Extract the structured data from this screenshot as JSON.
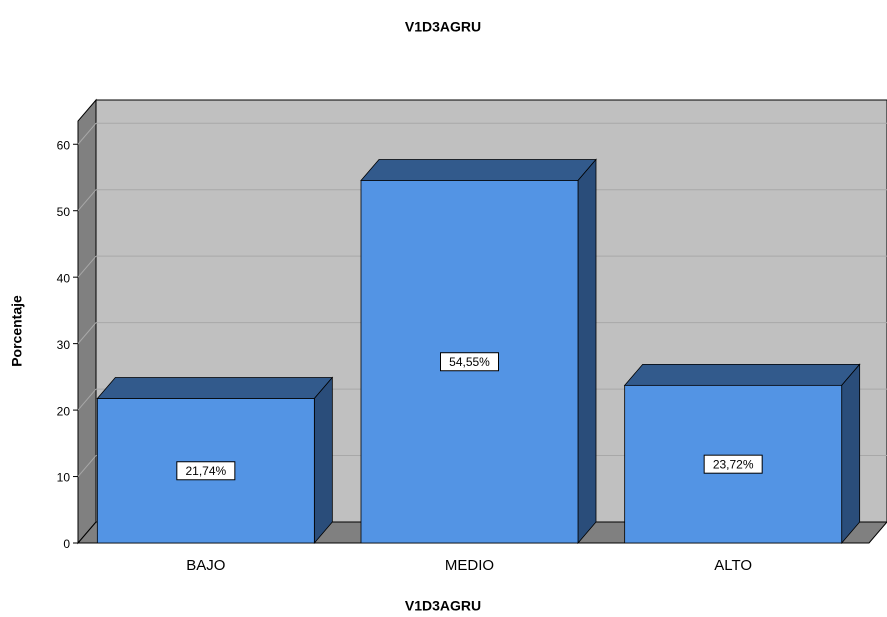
{
  "chart_data": {
    "type": "bar3d",
    "title": "V1D3AGRU",
    "x_label": "V1D3AGRU",
    "y_label": "Porcentaje",
    "categories": [
      "BAJO",
      "MEDIO",
      "ALTO"
    ],
    "values": [
      21.74,
      54.55,
      23.72
    ],
    "value_labels": [
      "21,74%",
      "54,55%",
      "23,72%"
    ],
    "color": "#5394e4",
    "ylim": [
      0,
      63.5
    ],
    "yticks": [
      0,
      10,
      20,
      30,
      40,
      50,
      60
    ],
    "grid": true
  }
}
